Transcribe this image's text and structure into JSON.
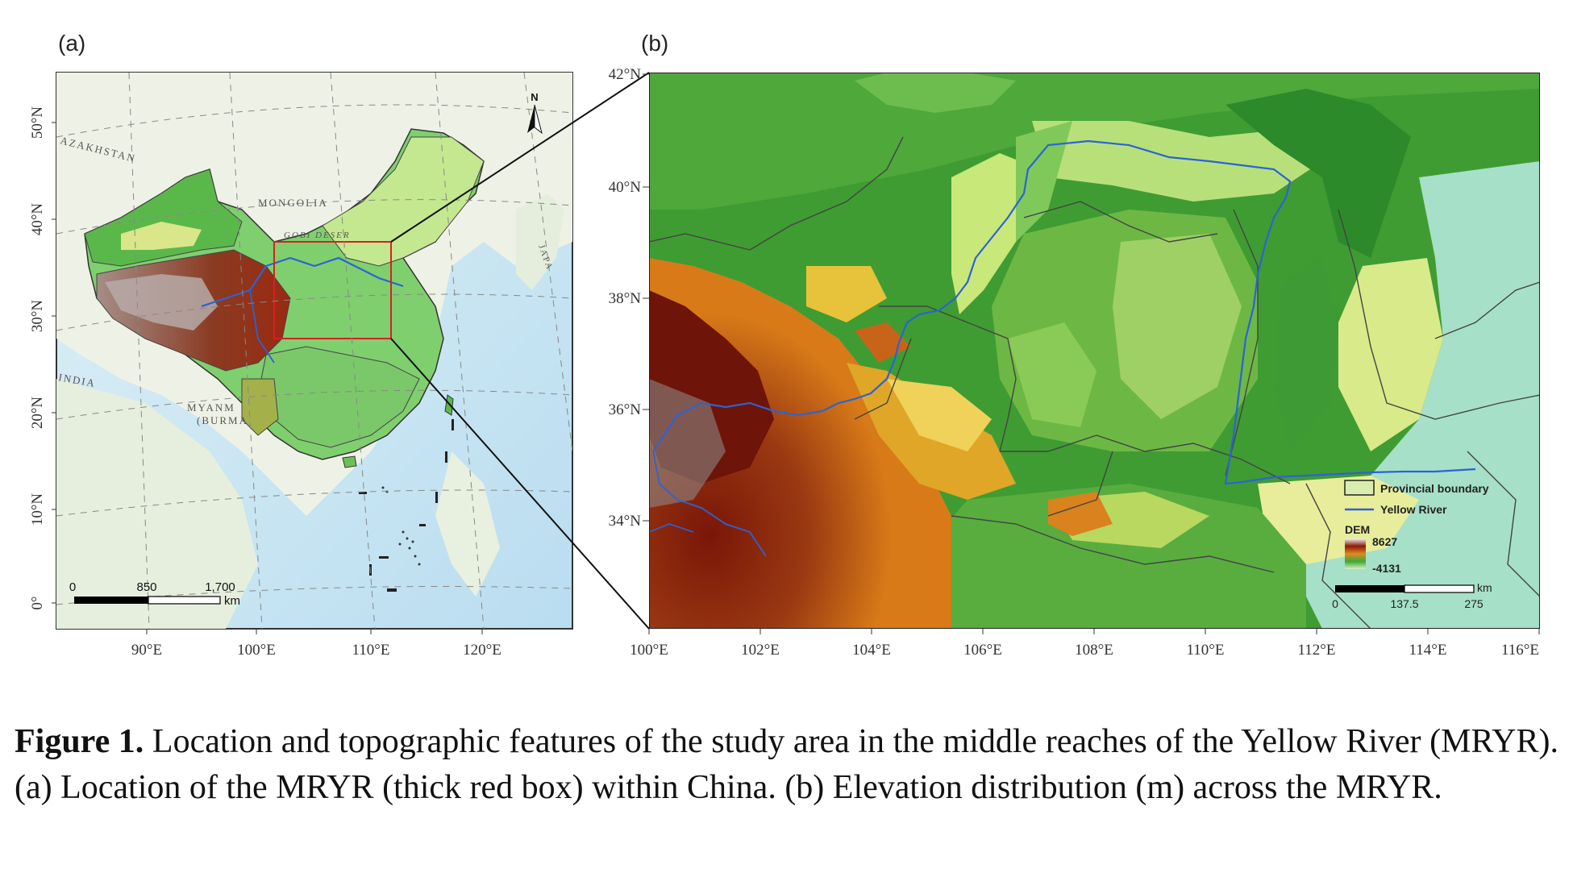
{
  "panels": {
    "a": {
      "label": "(a)",
      "lat_ticks": [
        "50°N",
        "40°N",
        "30°N",
        "20°N",
        "10°N",
        "0°"
      ],
      "lon_ticks": [
        "90°E",
        "100°E",
        "110°E",
        "120°E"
      ],
      "map_labels": [
        "AZAKHSTAN",
        "MONGOLIA",
        "GOBI DESER",
        "JAPA",
        "INDIA",
        "MYANM",
        "(BURMA"
      ],
      "north_arrow": "N",
      "scale": {
        "ticks": [
          "0",
          "850",
          "1,700"
        ],
        "unit": "km"
      }
    },
    "b": {
      "label": "(b)",
      "lat_ticks": [
        "42°N",
        "40°N",
        "38°N",
        "36°N",
        "34°N"
      ],
      "lon_ticks": [
        "100°E",
        "102°E",
        "104°E",
        "106°E",
        "108°E",
        "110°E",
        "112°E",
        "114°E",
        "116°E"
      ],
      "legend": {
        "provincial_boundary": "Provincial boundary",
        "yellow_river": "Yellow River",
        "dem_title": "DEM",
        "dem_max": "8627",
        "dem_min": "-4131"
      },
      "scale": {
        "ticks": [
          "0",
          "137.5",
          "275"
        ],
        "unit": "km"
      }
    }
  },
  "colors": {
    "river": "#2b63d6",
    "study_box": "#d62020",
    "lowland": "#9fe0c8",
    "green": "#3aa83a",
    "yellow": "#e8e86a",
    "orange": "#e08a1e",
    "red": "#8b1a0a"
  },
  "caption": {
    "bold": "Figure 1.",
    "text": " Location and topographic features of the study area in the middle reaches of the Yellow River (MRYR). (a) Location of the MRYR (thick red box) within China. (b) Elevation distribution (m) across the MRYR."
  }
}
